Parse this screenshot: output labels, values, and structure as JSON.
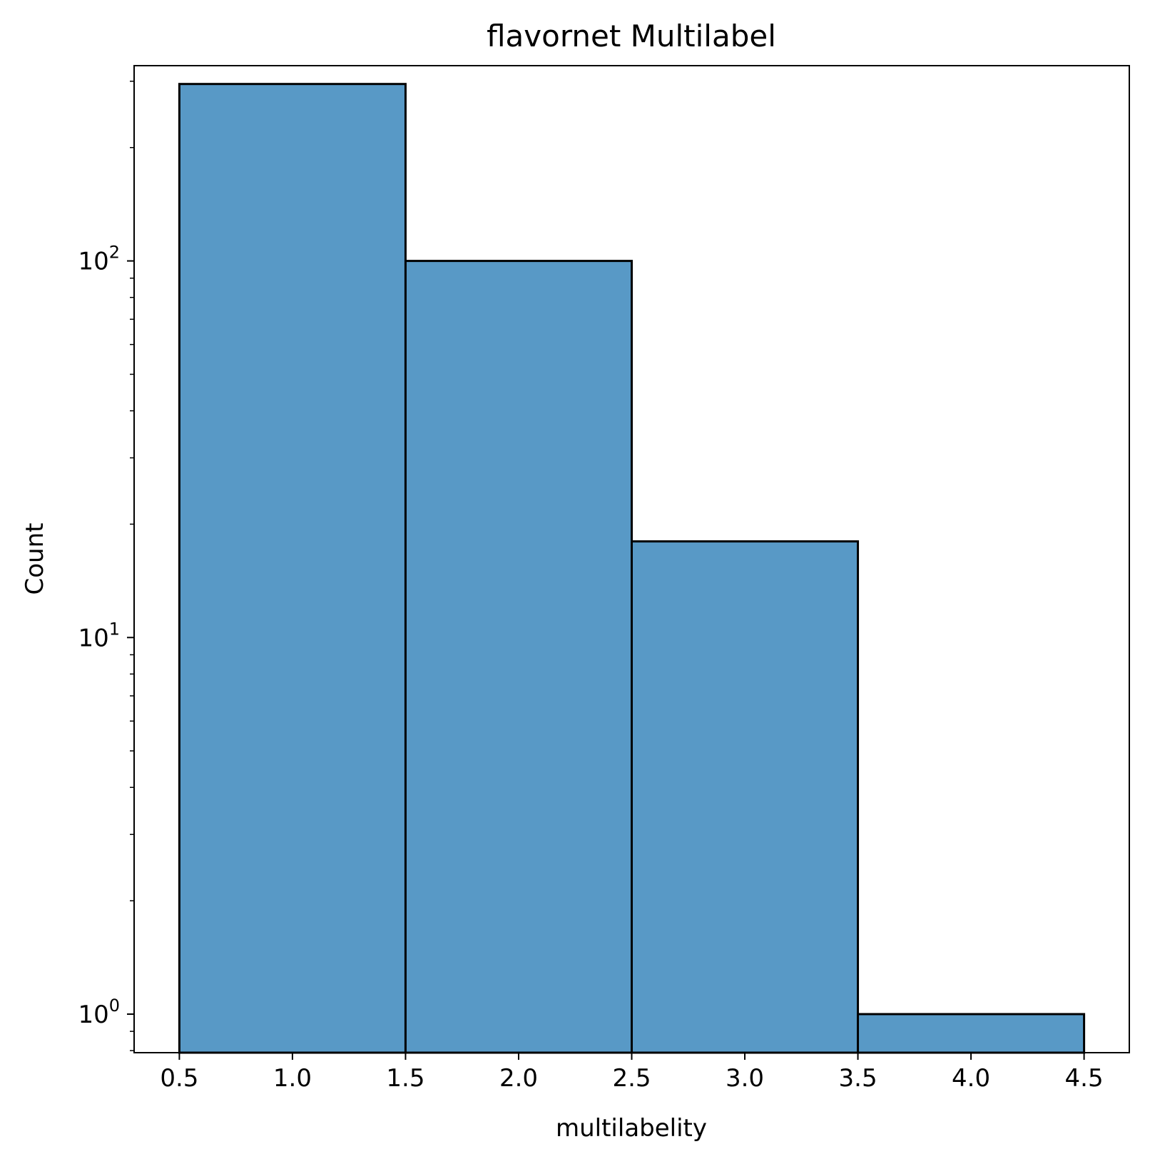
{
  "chart_data": {
    "type": "bar",
    "title": "flavornet Multilabel",
    "xlabel": "multilabelity",
    "ylabel": "Count",
    "yscale": "log",
    "xlim": [
      0.3,
      4.7
    ],
    "ylim": [
      0.79,
      330
    ],
    "bins": [
      {
        "x0": 0.5,
        "x1": 1.5,
        "value": 295
      },
      {
        "x0": 1.5,
        "x1": 2.5,
        "value": 100
      },
      {
        "x0": 2.5,
        "x1": 3.5,
        "value": 18
      },
      {
        "x0": 3.5,
        "x1": 4.5,
        "value": 1
      }
    ],
    "x_ticks": [
      "0.5",
      "1.0",
      "1.5",
      "2.0",
      "2.5",
      "3.0",
      "3.5",
      "4.0",
      "4.5"
    ],
    "y_ticks": [
      {
        "value": 1,
        "base": "10",
        "exponent": "0"
      },
      {
        "value": 10,
        "base": "10",
        "exponent": "1"
      },
      {
        "value": 100,
        "base": "10",
        "exponent": "2"
      }
    ],
    "grid": false,
    "legend": "none",
    "bar_color": "#5899C6",
    "edge_color": "#000000"
  }
}
